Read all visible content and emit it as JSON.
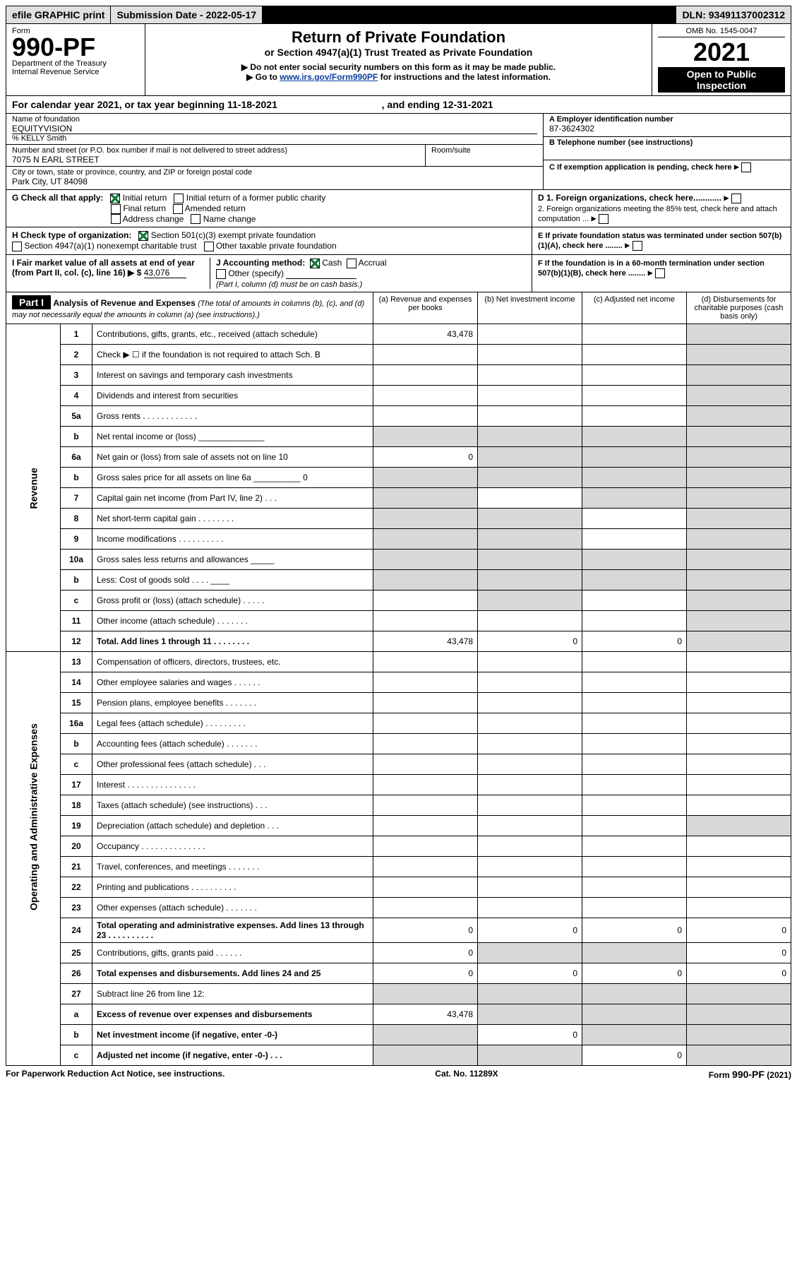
{
  "topbar": {
    "efile": "efile GRAPHIC print",
    "submission_label": "Submission Date - 2022-05-17",
    "dln": "DLN: 93491137002312"
  },
  "header": {
    "form_label": "Form",
    "form_num": "990-PF",
    "dept": "Department of the Treasury",
    "irs": "Internal Revenue Service",
    "title1": "Return of Private Foundation",
    "title2": "or Section 4947(a)(1) Trust Treated as Private Foundation",
    "instr1": "▶ Do not enter social security numbers on this form as it may be made public.",
    "instr2": "▶ Go to ",
    "instr_link": "www.irs.gov/Form990PF",
    "instr3": " for instructions and the latest information.",
    "omb": "OMB No. 1545-0047",
    "year": "2021",
    "open": "Open to Public Inspection"
  },
  "calendar": {
    "text_a": "For calendar year 2021, or tax year beginning ",
    "begin": "11-18-2021",
    "text_b": ", and ending ",
    "end": "12-31-2021"
  },
  "info": {
    "name_label": "Name of foundation",
    "name": "EQUITYVISION",
    "co": "% KELLY Smith",
    "addr_label": "Number and street (or P.O. box number if mail is not delivered to street address)",
    "addr": "7075 N EARL STREET",
    "room_label": "Room/suite",
    "city_label": "City or town, state or province, country, and ZIP or foreign postal code",
    "city": "Park City, UT  84098",
    "a_label": "A Employer identification number",
    "a_val": "87-3624302",
    "b_label": "B Telephone number (see instructions)",
    "c_label": "C If exemption application is pending, check here",
    "d1_label": "D 1. Foreign organizations, check here............",
    "d2_label": "   2. Foreign organizations meeting the 85% test, check here and attach computation ...",
    "e_label": "E  If private foundation status was terminated under section 507(b)(1)(A), check here ........",
    "f_label": "F  If the foundation is in a 60-month termination under section 507(b)(1)(B), check here ........"
  },
  "checks": {
    "g_label": "G Check all that apply:",
    "g_options": [
      "Initial return",
      "Initial return of a former public charity",
      "Final return",
      "Amended return",
      "Address change",
      "Name change"
    ],
    "g_checked_0": true,
    "h_label": "H Check type of organization:",
    "h1": "Section 501(c)(3) exempt private foundation",
    "h1_checked": true,
    "h2": "Section 4947(a)(1) nonexempt charitable trust",
    "h3": "Other taxable private foundation",
    "i_label": "I Fair market value of all assets at end of year (from Part II, col. (c), line 16) ▶ $",
    "i_val": "43,076",
    "j_label": "J Accounting method:",
    "j_cash": "Cash",
    "j_cash_checked": true,
    "j_accrual": "Accrual",
    "j_other": "Other (specify)",
    "j_note": "(Part I, column (d) must be on cash basis.)"
  },
  "part1": {
    "bar": "Part I",
    "title": "Analysis of Revenue and Expenses",
    "title_note": "(The total of amounts in columns (b), (c), and (d) may not necessarily equal the amounts in column (a) (see instructions).)",
    "col_a": "(a)  Revenue and expenses per books",
    "col_b": "(b)  Net investment income",
    "col_c": "(c)  Adjusted net income",
    "col_d": "(d)  Disbursements for charitable purposes (cash basis only)",
    "rows": [
      {
        "ln": "1",
        "desc": "Contributions, gifts, grants, etc., received (attach schedule)",
        "a": "43,478",
        "b": "",
        "c": "",
        "d": "g"
      },
      {
        "ln": "2",
        "desc": "Check ▶ ☐ if the foundation is not required to attach Sch. B",
        "a": "",
        "b": "",
        "c": "",
        "d": "g",
        "bold_words": [
          "not"
        ]
      },
      {
        "ln": "3",
        "desc": "Interest on savings and temporary cash investments",
        "a": "",
        "b": "",
        "c": "",
        "d": "g"
      },
      {
        "ln": "4",
        "desc": "Dividends and interest from securities",
        "a": "",
        "b": "",
        "c": "",
        "d": "g"
      },
      {
        "ln": "5a",
        "desc": "Gross rents  .   .   .   .   .   .   .   .   .   .   .   .",
        "a": "",
        "b": "",
        "c": "",
        "d": "g"
      },
      {
        "ln": "b",
        "desc": "Net rental income or (loss)  ______________",
        "a": "g",
        "b": "g",
        "c": "g",
        "d": "g"
      },
      {
        "ln": "6a",
        "desc": "Net gain or (loss) from sale of assets not on line 10",
        "a": "0",
        "b": "g",
        "c": "g",
        "d": "g"
      },
      {
        "ln": "b",
        "desc": "Gross sales price for all assets on line 6a __________ 0",
        "a": "g",
        "b": "g",
        "c": "g",
        "d": "g"
      },
      {
        "ln": "7",
        "desc": "Capital gain net income (from Part IV, line 2)   .   .   .",
        "a": "g",
        "b": "",
        "c": "g",
        "d": "g"
      },
      {
        "ln": "8",
        "desc": "Net short-term capital gain  .   .   .   .   .   .   .   .",
        "a": "g",
        "b": "g",
        "c": "",
        "d": "g"
      },
      {
        "ln": "9",
        "desc": "Income modifications  .   .   .   .   .   .   .   .   .   .",
        "a": "g",
        "b": "g",
        "c": "",
        "d": "g"
      },
      {
        "ln": "10a",
        "desc": "Gross sales less returns and allowances  _____",
        "a": "g",
        "b": "g",
        "c": "g",
        "d": "g"
      },
      {
        "ln": "b",
        "desc": "Less: Cost of goods sold    .   .   .   .   ____",
        "a": "g",
        "b": "g",
        "c": "g",
        "d": "g"
      },
      {
        "ln": "c",
        "desc": "Gross profit or (loss) (attach schedule)   .   .   .   .   .",
        "a": "",
        "b": "g",
        "c": "",
        "d": "g"
      },
      {
        "ln": "11",
        "desc": "Other income (attach schedule)   .   .   .   .   .   .   .",
        "a": "",
        "b": "",
        "c": "",
        "d": "g"
      },
      {
        "ln": "12",
        "desc": "Total. Add lines 1 through 11   .   .   .   .   .   .   .   .",
        "a": "43,478",
        "b": "0",
        "c": "0",
        "d": "g",
        "bold": true
      }
    ],
    "exp_rows": [
      {
        "ln": "13",
        "desc": "Compensation of officers, directors, trustees, etc.",
        "a": "",
        "b": "",
        "c": "",
        "d": ""
      },
      {
        "ln": "14",
        "desc": "Other employee salaries and wages   .   .   .   .   .   .",
        "a": "",
        "b": "",
        "c": "",
        "d": ""
      },
      {
        "ln": "15",
        "desc": "Pension plans, employee benefits  .   .   .   .   .   .   .",
        "a": "",
        "b": "",
        "c": "",
        "d": ""
      },
      {
        "ln": "16a",
        "desc": "Legal fees (attach schedule)  .   .   .   .   .   .   .   .   .",
        "a": "",
        "b": "",
        "c": "",
        "d": ""
      },
      {
        "ln": "b",
        "desc": "Accounting fees (attach schedule)  .   .   .   .   .   .   .",
        "a": "",
        "b": "",
        "c": "",
        "d": ""
      },
      {
        "ln": "c",
        "desc": "Other professional fees (attach schedule)    .   .   .",
        "a": "",
        "b": "",
        "c": "",
        "d": ""
      },
      {
        "ln": "17",
        "desc": "Interest  .   .   .   .   .   .   .   .   .   .   .   .   .   .   .",
        "a": "",
        "b": "",
        "c": "",
        "d": ""
      },
      {
        "ln": "18",
        "desc": "Taxes (attach schedule) (see instructions)     .   .   .",
        "a": "",
        "b": "",
        "c": "",
        "d": ""
      },
      {
        "ln": "19",
        "desc": "Depreciation (attach schedule) and depletion    .   .   .",
        "a": "",
        "b": "",
        "c": "",
        "d": "g"
      },
      {
        "ln": "20",
        "desc": "Occupancy  .   .   .   .   .   .   .   .   .   .   .   .   .   .",
        "a": "",
        "b": "",
        "c": "",
        "d": ""
      },
      {
        "ln": "21",
        "desc": "Travel, conferences, and meetings  .   .   .   .   .   .   .",
        "a": "",
        "b": "",
        "c": "",
        "d": ""
      },
      {
        "ln": "22",
        "desc": "Printing and publications  .   .   .   .   .   .   .   .   .   .",
        "a": "",
        "b": "",
        "c": "",
        "d": ""
      },
      {
        "ln": "23",
        "desc": "Other expenses (attach schedule)  .   .   .   .   .   .   .",
        "a": "",
        "b": "",
        "c": "",
        "d": ""
      },
      {
        "ln": "24",
        "desc": "Total operating and administrative expenses. Add lines 13 through 23   .   .   .   .   .   .   .   .   .   .",
        "a": "0",
        "b": "0",
        "c": "0",
        "d": "0",
        "bold": true
      },
      {
        "ln": "25",
        "desc": "Contributions, gifts, grants paid     .   .   .   .   .   .",
        "a": "0",
        "b": "g",
        "c": "g",
        "d": "0"
      },
      {
        "ln": "26",
        "desc": "Total expenses and disbursements. Add lines 24 and 25",
        "a": "0",
        "b": "0",
        "c": "0",
        "d": "0",
        "bold": true
      }
    ],
    "net_rows": [
      {
        "ln": "27",
        "desc": "Subtract line 26 from line 12:",
        "a": "g",
        "b": "g",
        "c": "g",
        "d": "g"
      },
      {
        "ln": "a",
        "desc": "Excess of revenue over expenses and disbursements",
        "a": "43,478",
        "b": "g",
        "c": "g",
        "d": "g",
        "bold": true
      },
      {
        "ln": "b",
        "desc": "Net investment income (if negative, enter -0-)",
        "a": "g",
        "b": "0",
        "c": "g",
        "d": "g",
        "bold": true
      },
      {
        "ln": "c",
        "desc": "Adjusted net income (if negative, enter -0-)    .   .   .",
        "a": "g",
        "b": "g",
        "c": "0",
        "d": "g",
        "bold": true
      }
    ],
    "rev_label": "Revenue",
    "exp_label": "Operating and Administrative Expenses"
  },
  "footer": {
    "left": "For Paperwork Reduction Act Notice, see instructions.",
    "mid": "Cat. No. 11289X",
    "right": "Form 990-PF (2021)"
  }
}
